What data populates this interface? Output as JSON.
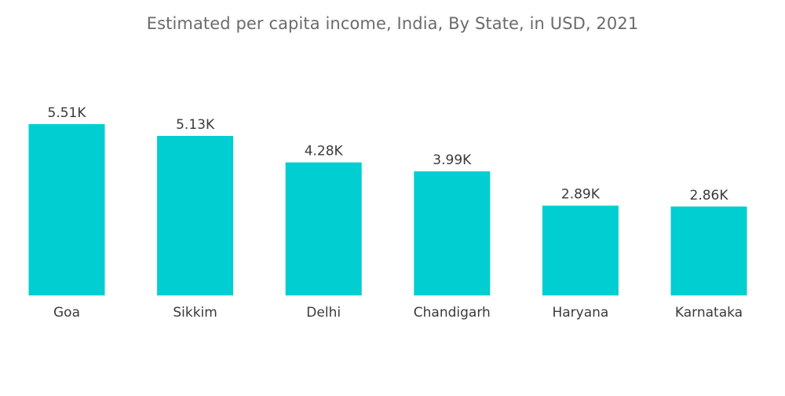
{
  "chart_data": {
    "type": "bar",
    "title": "Estimated per capita income, India, By State, in USD, 2021",
    "categories": [
      "Goa",
      "Sikkim",
      "Delhi",
      "Chandigarh",
      "Haryana",
      "Karnataka"
    ],
    "values": [
      5510,
      5130,
      4280,
      3990,
      2890,
      2860
    ],
    "value_labels": [
      "5.51K",
      "5.13K",
      "4.28K",
      "3.99K",
      "2.89K",
      "2.86K"
    ],
    "xlabel": "",
    "ylabel": "",
    "ylim": [
      0,
      5510
    ],
    "grid": false,
    "legend": "none",
    "bar_color": "#00CED1"
  }
}
